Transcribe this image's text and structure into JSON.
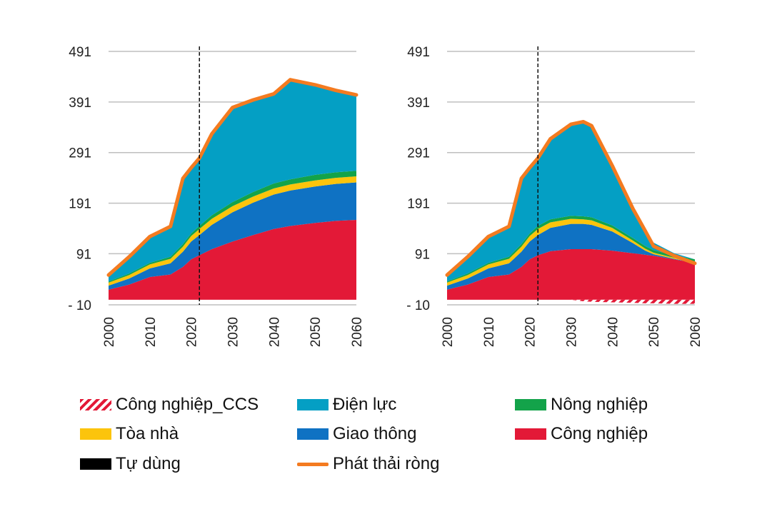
{
  "chart_data": [
    {
      "type": "area",
      "title": "",
      "xlabel": "",
      "ylabel": "",
      "x_ticks": [
        2000,
        2010,
        2020,
        2030,
        2040,
        2050,
        2060
      ],
      "y_ticks": [
        -10,
        91,
        191,
        291,
        391,
        491
      ],
      "y_tick_labels": [
        "-   10",
        "91",
        "191",
        "291",
        "391",
        "491"
      ],
      "xlim": [
        2000,
        2060
      ],
      "ylim": [
        -10,
        491
      ],
      "grid": true,
      "reference_line_x": 2022,
      "x": [
        2000,
        2005,
        2010,
        2015,
        2018,
        2020,
        2022,
        2025,
        2030,
        2035,
        2040,
        2044,
        2050,
        2055,
        2060
      ],
      "series": [
        {
          "key": "cong_nghiep",
          "values": [
            20,
            30,
            45,
            50,
            65,
            80,
            88,
            100,
            115,
            128,
            140,
            146,
            152,
            156,
            158
          ]
        },
        {
          "key": "giao_thong",
          "values": [
            8,
            12,
            17,
            22,
            30,
            35,
            40,
            48,
            58,
            64,
            68,
            70,
            72,
            73,
            74
          ]
        },
        {
          "key": "toa_nha",
          "values": [
            6,
            7,
            8,
            9,
            10,
            11,
            12,
            12,
            12,
            12,
            12,
            12,
            12,
            12,
            12
          ]
        },
        {
          "key": "nong_nghiep",
          "values": [
            2,
            3,
            3,
            4,
            5,
            5,
            6,
            7,
            8,
            9,
            10,
            10,
            11,
            11,
            11
          ]
        },
        {
          "key": "tu_dung",
          "values": [
            0,
            0,
            0,
            0,
            0,
            0,
            0,
            0,
            0,
            0,
            0,
            0,
            0,
            0,
            0
          ]
        },
        {
          "key": "dien_luc",
          "values": [
            13,
            33,
            52,
            60,
            130,
            130,
            134,
            161,
            187,
            182,
            177,
            197,
            178,
            162,
            150
          ]
        },
        {
          "key": "cong_nghiep_ccs",
          "values": [
            0,
            0,
            0,
            0,
            0,
            0,
            0,
            0,
            0,
            0,
            0,
            0,
            0,
            0,
            0
          ]
        }
      ],
      "net_emissions": {
        "key": "phat_thai_rong",
        "values": [
          49,
          85,
          125,
          145,
          240,
          261,
          280,
          328,
          380,
          395,
          407,
          435,
          425,
          414,
          405
        ]
      }
    },
    {
      "type": "area",
      "title": "",
      "xlabel": "",
      "ylabel": "",
      "x_ticks": [
        2000,
        2010,
        2020,
        2030,
        2040,
        2050,
        2060
      ],
      "y_ticks": [
        -10,
        91,
        191,
        291,
        391,
        491
      ],
      "y_tick_labels": [
        "-   10",
        "91",
        "191",
        "291",
        "391",
        "491"
      ],
      "xlim": [
        2000,
        2060
      ],
      "ylim": [
        -10,
        491
      ],
      "grid": true,
      "reference_line_x": 2022,
      "x": [
        2000,
        2005,
        2010,
        2015,
        2018,
        2020,
        2022,
        2025,
        2030,
        2033,
        2035,
        2040,
        2045,
        2048,
        2050,
        2055,
        2060
      ],
      "series": [
        {
          "key": "cong_nghiep",
          "values": [
            20,
            30,
            45,
            50,
            65,
            80,
            88,
            96,
            100,
            100,
            100,
            97,
            92,
            89,
            87,
            80,
            73
          ]
        },
        {
          "key": "giao_thong",
          "values": [
            8,
            12,
            17,
            22,
            30,
            35,
            40,
            46,
            50,
            50,
            48,
            38,
            20,
            8,
            3,
            1,
            0
          ]
        },
        {
          "key": "toa_nha",
          "values": [
            6,
            7,
            8,
            9,
            10,
            11,
            12,
            11,
            10,
            9,
            9,
            7,
            5,
            4,
            3,
            2,
            2
          ]
        },
        {
          "key": "nong_nghiep",
          "values": [
            2,
            3,
            3,
            4,
            5,
            5,
            6,
            6,
            6,
            6,
            6,
            5,
            5,
            5,
            5,
            5,
            5
          ]
        },
        {
          "key": "tu_dung",
          "values": [
            0,
            0,
            0,
            0,
            0,
            0,
            0,
            0,
            0,
            0,
            0,
            0,
            0,
            0,
            0,
            0,
            0
          ]
        },
        {
          "key": "dien_luc",
          "values": [
            13,
            33,
            52,
            60,
            130,
            130,
            134,
            159,
            181,
            190,
            181,
            118,
            58,
            30,
            15,
            4,
            0
          ]
        },
        {
          "key": "cong_nghiep_ccs",
          "values": [
            0,
            0,
            0,
            0,
            0,
            0,
            0,
            0,
            0,
            -3,
            -4,
            -5,
            -6,
            -7,
            -7,
            -8,
            -8
          ]
        }
      ],
      "net_emissions": {
        "key": "phat_thai_rong",
        "values": [
          49,
          85,
          125,
          145,
          240,
          261,
          280,
          318,
          347,
          352,
          344,
          265,
          180,
          136,
          106,
          87,
          72
        ]
      }
    }
  ],
  "legend": [
    {
      "key": "cong_nghiep_ccs",
      "label": "Công nghiệp_CCS",
      "color": "#e31937",
      "style": "hatch"
    },
    {
      "key": "dien_luc",
      "label": "Điện lực",
      "color": "#049fc4",
      "style": "rect"
    },
    {
      "key": "nong_nghiep",
      "label": "Nông nghiệp",
      "color": "#13a34a",
      "style": "rect"
    },
    {
      "key": "toa_nha",
      "label": "Tòa nhà",
      "color": "#fcc40c",
      "style": "rect"
    },
    {
      "key": "giao_thong",
      "label": "Giao thông",
      "color": "#0f72c3",
      "style": "rect"
    },
    {
      "key": "cong_nghiep",
      "label": "Công nghiệp",
      "color": "#e31937",
      "style": "rect"
    },
    {
      "key": "tu_dung",
      "label": "Tự dùng",
      "color": "#000000",
      "style": "rect"
    },
    {
      "key": "phat_thai_rong",
      "label": "Phát thải ròng",
      "color": "#f47b20",
      "style": "line"
    }
  ]
}
